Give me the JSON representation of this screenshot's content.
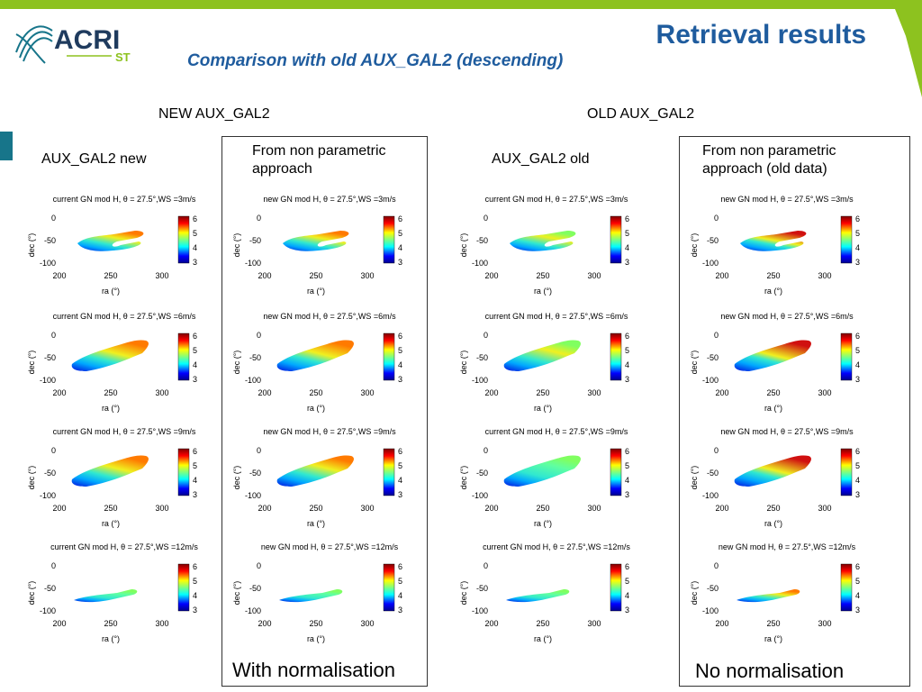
{
  "header": {
    "title": "Retrieval results",
    "subtitle": "Comparison with old AUX_GAL2 (descending)",
    "logo_text": "ACRI",
    "logo_sub": "ST"
  },
  "colors": {
    "accent_green": "#8dc21f",
    "title_blue": "#1f5c9e",
    "tab_teal": "#17758a"
  },
  "columns": {
    "new": {
      "heading": "NEW AUX_GAL2",
      "left_label": "AUX_GAL2 new",
      "right_label_line1": "From non parametric",
      "right_label_line2": "approach",
      "footer": "With normalisation"
    },
    "old": {
      "heading": "OLD AUX_GAL2",
      "left_label": "AUX_GAL2 old",
      "right_label_line1": "From non parametric",
      "right_label_line2": "approach (old data)",
      "footer": "No normalisation"
    }
  },
  "plot_common": {
    "xlabel": "ra (°)",
    "ylabel": "dec (°)",
    "xticks": [
      "200",
      "250",
      "300"
    ],
    "yticks": [
      "0",
      "-50",
      "-100"
    ],
    "cbar_ticks": [
      "6",
      "5",
      "4",
      "3"
    ]
  },
  "plot_titles": {
    "current": [
      "current GN mod H, θ = 27.5°,WS =3m/s",
      "current GN mod H, θ = 27.5°,WS =6m/s",
      "current GN mod H, θ = 27.5°,WS =9m/s",
      "current GN mod H, θ = 27.5°,WS =12m/s"
    ],
    "new": [
      "new GN mod H, θ = 27.5°,WS =3m/s",
      "new GN mod H, θ = 27.5°,WS =6m/s",
      "new GN mod H, θ = 27.5°,WS =9m/s",
      "new GN mod H, θ = 27.5°,WS =12m/s"
    ]
  },
  "panels": [
    {
      "title": "current",
      "row": 0,
      "intensity": 0.55,
      "shape": "split"
    },
    {
      "title": "new",
      "row": 0,
      "intensity": 0.6,
      "shape": "split"
    },
    {
      "title": "current",
      "row": 0,
      "intensity": 0.5,
      "shape": "split"
    },
    {
      "title": "new",
      "row": 0,
      "intensity": 0.95,
      "shape": "split"
    },
    {
      "title": "current",
      "row": 1,
      "intensity": 0.75,
      "shape": "full"
    },
    {
      "title": "new",
      "row": 1,
      "intensity": 0.8,
      "shape": "full"
    },
    {
      "title": "current",
      "row": 1,
      "intensity": 0.5,
      "shape": "full"
    },
    {
      "title": "new",
      "row": 1,
      "intensity": 1.0,
      "shape": "full"
    },
    {
      "title": "current",
      "row": 2,
      "intensity": 0.7,
      "shape": "full"
    },
    {
      "title": "new",
      "row": 2,
      "intensity": 0.6,
      "shape": "full"
    },
    {
      "title": "current",
      "row": 2,
      "intensity": 0.4,
      "shape": "full"
    },
    {
      "title": "new",
      "row": 2,
      "intensity": 0.95,
      "shape": "full"
    },
    {
      "title": "current",
      "row": 3,
      "intensity": 0.35,
      "shape": "thin"
    },
    {
      "title": "new",
      "row": 3,
      "intensity": 0.3,
      "shape": "thin"
    },
    {
      "title": "current",
      "row": 3,
      "intensity": 0.45,
      "shape": "thin"
    },
    {
      "title": "new",
      "row": 3,
      "intensity": 0.55,
      "shape": "thin"
    }
  ]
}
